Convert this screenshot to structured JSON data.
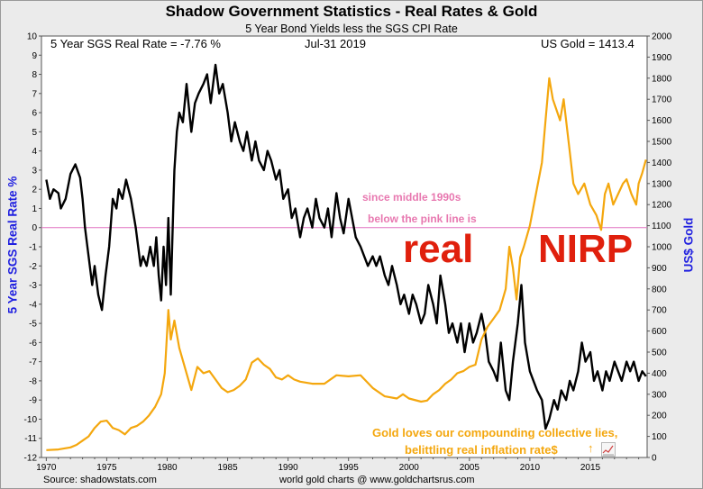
{
  "chart_data": {
    "type": "line",
    "title": "Shadow Government Statistics - Real Rates & Gold",
    "subtitle": "5 Year Bond Yields less the SGS CPI Rate",
    "left_stat": "5 Year SGS Real Rate = -7.76 %",
    "date": "Jul-31  2019",
    "right_stat": "US Gold = 1413.4",
    "ylabel_left": "5 Year SGS Real Rate %",
    "ylabel_right": "US$ Gold",
    "x_ticks": [
      1970,
      1975,
      1980,
      1985,
      1990,
      1995,
      2000,
      2005,
      2010,
      2015
    ],
    "xlim": [
      1969.6,
      2019.7
    ],
    "y_left_lim": [
      -12,
      10
    ],
    "y_left_ticks": [
      10,
      9,
      8,
      7,
      6,
      5,
      4,
      3,
      2,
      1,
      0,
      -1,
      -2,
      -3,
      -4,
      -5,
      -6,
      -7,
      -8,
      -9,
      -10,
      -11,
      -12
    ],
    "y_right_lim": [
      0,
      2000
    ],
    "y_right_ticks": [
      2000,
      1900,
      1800,
      1700,
      1600,
      1500,
      1400,
      1300,
      1200,
      1100,
      1000,
      900,
      800,
      700,
      600,
      500,
      400,
      300,
      200,
      100,
      0
    ],
    "reference_line": {
      "value": 0,
      "color": "#e070c0"
    },
    "series": [
      {
        "name": "5 Year SGS Real Rate",
        "axis": "left",
        "color": "#000000",
        "x": [
          1970.0,
          1970.3,
          1970.6,
          1971.0,
          1971.2,
          1971.6,
          1972.0,
          1972.4,
          1972.8,
          1973.0,
          1973.2,
          1973.5,
          1973.8,
          1974.0,
          1974.3,
          1974.6,
          1974.9,
          1975.2,
          1975.5,
          1975.8,
          1976.0,
          1976.3,
          1976.6,
          1977.0,
          1977.4,
          1977.8,
          1978.0,
          1978.3,
          1978.6,
          1978.9,
          1979.1,
          1979.3,
          1979.5,
          1979.7,
          1979.9,
          1980.1,
          1980.3,
          1980.5,
          1980.6,
          1980.8,
          1981.0,
          1981.3,
          1981.6,
          1982.0,
          1982.3,
          1982.6,
          1983.0,
          1983.3,
          1983.6,
          1984.0,
          1984.3,
          1984.6,
          1985.0,
          1985.3,
          1985.6,
          1986.0,
          1986.3,
          1986.6,
          1987.0,
          1987.3,
          1987.6,
          1988.0,
          1988.3,
          1988.6,
          1989.0,
          1989.3,
          1989.6,
          1990.0,
          1990.3,
          1990.6,
          1991.0,
          1991.3,
          1991.6,
          1992.0,
          1992.3,
          1992.6,
          1993.0,
          1993.3,
          1993.6,
          1994.0,
          1994.3,
          1994.6,
          1995.0,
          1995.3,
          1995.6,
          1996.0,
          1996.3,
          1996.6,
          1997.0,
          1997.3,
          1997.6,
          1998.0,
          1998.3,
          1998.6,
          1999.0,
          1999.3,
          1999.6,
          2000.0,
          2000.3,
          2000.6,
          2001.0,
          2001.3,
          2001.6,
          2002.0,
          2002.3,
          2002.6,
          2003.0,
          2003.3,
          2003.6,
          2004.0,
          2004.3,
          2004.6,
          2005.0,
          2005.3,
          2005.6,
          2006.0,
          2006.3,
          2006.6,
          2007.0,
          2007.3,
          2007.6,
          2008.0,
          2008.3,
          2008.6,
          2009.0,
          2009.3,
          2009.6,
          2010.0,
          2010.3,
          2010.6,
          2011.0,
          2011.3,
          2011.6,
          2012.0,
          2012.3,
          2012.6,
          2013.0,
          2013.3,
          2013.6,
          2014.0,
          2014.3,
          2014.6,
          2015.0,
          2015.3,
          2015.6,
          2016.0,
          2016.3,
          2016.6,
          2017.0,
          2017.3,
          2017.6,
          2018.0,
          2018.3,
          2018.6,
          2019.0,
          2019.3,
          2019.6
        ],
        "values": [
          2.5,
          1.5,
          2.0,
          1.8,
          1.0,
          1.5,
          2.8,
          3.3,
          2.6,
          1.5,
          0.0,
          -1.5,
          -3.0,
          -2.0,
          -3.5,
          -4.3,
          -2.5,
          -1.0,
          1.5,
          1.0,
          2.0,
          1.5,
          2.5,
          1.5,
          0.0,
          -2.0,
          -1.5,
          -2.0,
          -1.0,
          -2.0,
          -0.5,
          -2.5,
          -3.8,
          -1.0,
          -3.0,
          0.5,
          -3.5,
          1.0,
          3.0,
          5.0,
          6.0,
          5.5,
          7.5,
          5.0,
          6.5,
          7.0,
          7.5,
          8.0,
          6.5,
          8.5,
          7.0,
          7.5,
          6.0,
          4.5,
          5.5,
          4.5,
          4.0,
          5.0,
          3.5,
          4.5,
          3.5,
          3.0,
          4.0,
          3.5,
          2.5,
          3.0,
          1.5,
          2.0,
          0.5,
          1.0,
          -0.5,
          0.5,
          1.0,
          0.0,
          1.5,
          0.5,
          0.0,
          1.0,
          -0.5,
          1.8,
          0.5,
          -0.3,
          1.5,
          0.5,
          -0.5,
          -1.0,
          -1.5,
          -2.0,
          -1.5,
          -2.0,
          -1.5,
          -2.5,
          -3.0,
          -2.0,
          -3.0,
          -4.0,
          -3.5,
          -4.5,
          -3.5,
          -4.0,
          -5.0,
          -4.5,
          -3.0,
          -4.0,
          -5.0,
          -2.5,
          -4.0,
          -5.5,
          -5.0,
          -6.0,
          -5.0,
          -6.5,
          -5.0,
          -6.0,
          -5.5,
          -4.5,
          -5.5,
          -7.0,
          -7.5,
          -8.0,
          -6.0,
          -8.5,
          -9.0,
          -7.0,
          -5.0,
          -3.0,
          -6.0,
          -7.5,
          -8.0,
          -8.5,
          -9.0,
          -10.5,
          -10.0,
          -9.0,
          -9.5,
          -8.5,
          -9.0,
          -8.0,
          -8.5,
          -7.5,
          -6.0,
          -7.0,
          -6.5,
          -8.0,
          -7.5,
          -8.5,
          -7.5,
          -8.0,
          -7.0,
          -7.5,
          -8.0,
          -7.0,
          -7.5,
          -7.0,
          -8.0,
          -7.5,
          -7.76
        ]
      },
      {
        "name": "US Gold",
        "axis": "right",
        "color": "#f4a70e",
        "x": [
          1970.0,
          1971.0,
          1972.0,
          1972.5,
          1973.0,
          1973.5,
          1974.0,
          1974.5,
          1975.0,
          1975.5,
          1976.0,
          1976.5,
          1977.0,
          1977.5,
          1978.0,
          1978.5,
          1979.0,
          1979.5,
          1979.8,
          1980.0,
          1980.1,
          1980.3,
          1980.6,
          1981.0,
          1981.5,
          1982.0,
          1982.5,
          1983.0,
          1983.5,
          1984.0,
          1984.5,
          1985.0,
          1985.5,
          1986.0,
          1986.5,
          1987.0,
          1987.5,
          1988.0,
          1988.5,
          1989.0,
          1989.5,
          1990.0,
          1990.5,
          1991.0,
          1992.0,
          1993.0,
          1994.0,
          1995.0,
          1996.0,
          1997.0,
          1998.0,
          1999.0,
          1999.5,
          2000.0,
          2001.0,
          2001.5,
          2002.0,
          2002.5,
          2003.0,
          2003.5,
          2004.0,
          2004.5,
          2005.0,
          2005.5,
          2006.0,
          2006.5,
          2007.0,
          2007.5,
          2008.0,
          2008.3,
          2008.6,
          2008.9,
          2009.2,
          2009.5,
          2010.0,
          2010.5,
          2011.0,
          2011.3,
          2011.6,
          2011.9,
          2012.2,
          2012.5,
          2012.8,
          2013.0,
          2013.3,
          2013.6,
          2014.0,
          2014.5,
          2015.0,
          2015.5,
          2015.9,
          2016.2,
          2016.5,
          2016.9,
          2017.3,
          2017.7,
          2018.0,
          2018.4,
          2018.8,
          2019.0,
          2019.3,
          2019.6
        ],
        "values": [
          35,
          38,
          48,
          60,
          80,
          100,
          140,
          170,
          175,
          140,
          130,
          110,
          140,
          150,
          170,
          200,
          240,
          300,
          400,
          600,
          700,
          560,
          650,
          520,
          420,
          320,
          430,
          400,
          410,
          370,
          330,
          310,
          320,
          340,
          370,
          450,
          470,
          440,
          420,
          380,
          370,
          390,
          370,
          360,
          350,
          350,
          390,
          385,
          390,
          330,
          290,
          280,
          300,
          280,
          265,
          270,
          300,
          320,
          350,
          370,
          400,
          410,
          430,
          440,
          560,
          620,
          660,
          700,
          800,
          1000,
          900,
          750,
          950,
          1000,
          1100,
          1250,
          1400,
          1600,
          1800,
          1700,
          1650,
          1600,
          1700,
          1600,
          1450,
          1300,
          1250,
          1300,
          1200,
          1150,
          1080,
          1250,
          1300,
          1200,
          1250,
          1300,
          1320,
          1250,
          1200,
          1300,
          1350,
          1413.4
        ]
      }
    ]
  },
  "annotations": {
    "since": "since middle 1990s",
    "below": "below the pink line is",
    "real": "real",
    "nirp": "NIRP",
    "gold_line1": "Gold loves our compounding collective lies,",
    "gold_line2": "belittling real inflation rate$",
    "arrow": "↑"
  },
  "footer": {
    "source": "Source: shadowstats.com",
    "credit": "world gold charts @ www.goldchartsrus.com"
  },
  "icons": {
    "arrow": "up-arrow-icon",
    "chart": "chart-icon"
  }
}
